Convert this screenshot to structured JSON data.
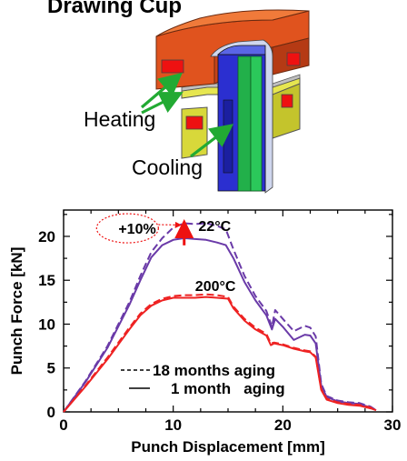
{
  "illustration": {
    "title": "Drawing Cup",
    "heating_label": "Heating",
    "cooling_label": "Cooling",
    "colors": {
      "die_top": "#e0531e",
      "die_lower": "#d8d83a",
      "punch_blue": "#2b2fd0",
      "punch_green": "#22b04a",
      "heater": "#ee1111",
      "arrow": "#22aa33"
    }
  },
  "chart_data": {
    "type": "line",
    "xlabel": "Punch Displacement [mm]",
    "ylabel": "Punch Force [kN]",
    "xlim": [
      0,
      30
    ],
    "ylim": [
      0,
      23
    ],
    "xticks": [
      0,
      10,
      20,
      30
    ],
    "yticks": [
      0,
      5,
      10,
      15,
      20
    ],
    "grid": false,
    "series": [
      {
        "name": "18 months aging",
        "group": "22°C",
        "style": "dashed",
        "color": "#6a3aa8",
        "x": [
          0,
          2,
          4,
          6,
          7,
          8,
          9,
          10,
          11,
          12,
          13,
          14,
          14.8,
          15.5,
          16.5,
          17.5,
          18.5,
          19.0,
          19.3,
          20.0,
          21.0,
          22.0,
          22.5,
          23.0,
          23.5,
          24.0,
          25.0,
          26.0,
          27.0,
          28.0,
          28.5
        ],
        "y": [
          0,
          3.5,
          7.5,
          12.5,
          15.5,
          18.2,
          19.8,
          21.0,
          21.5,
          21.4,
          21.5,
          21.2,
          20.8,
          18.5,
          15.5,
          13.2,
          11.5,
          9.7,
          11.6,
          10.6,
          9.2,
          9.8,
          9.6,
          8.6,
          3.2,
          1.8,
          1.3,
          1.1,
          1.0,
          0.6,
          0.2
        ]
      },
      {
        "name": "1 month aging",
        "group": "22°C",
        "style": "solid",
        "color": "#6a3aa8",
        "x": [
          0,
          2,
          4,
          6,
          7,
          8,
          9,
          10,
          11,
          12,
          13,
          14,
          14.8,
          15.5,
          16.5,
          17.5,
          18.5,
          19.0,
          19.3,
          20.0,
          21.0,
          22.0,
          22.5,
          23.0,
          23.5,
          24.0,
          25.0,
          26.0,
          27.0,
          28.0,
          28.5
        ],
        "y": [
          0,
          3.4,
          7.3,
          12.2,
          15.0,
          17.6,
          19.0,
          19.6,
          19.8,
          19.7,
          19.6,
          19.3,
          19.0,
          17.5,
          14.8,
          12.7,
          11.0,
          9.4,
          10.6,
          9.7,
          8.2,
          8.8,
          8.7,
          7.8,
          3.0,
          1.7,
          1.2,
          1.0,
          0.9,
          0.5,
          0.2
        ]
      },
      {
        "name": "18 months aging",
        "group": "200°C",
        "style": "dashed",
        "color": "#ee2222",
        "x": [
          0,
          2,
          4,
          6,
          7,
          8,
          9,
          10,
          11,
          12,
          13,
          14,
          15.0,
          15.5,
          16.5,
          17.5,
          18.5,
          18.9,
          19.2,
          20.0,
          21.0,
          22.0,
          22.5,
          23.0,
          23.5,
          24.0,
          25.0,
          26.0,
          27.0,
          28.0,
          28.5
        ],
        "y": [
          0,
          3.0,
          6.2,
          9.6,
          11.2,
          12.3,
          12.9,
          13.2,
          13.3,
          13.3,
          13.4,
          13.3,
          13.1,
          12.0,
          10.6,
          9.6,
          8.9,
          7.8,
          7.9,
          7.7,
          7.3,
          7.0,
          6.9,
          6.3,
          2.6,
          1.5,
          1.1,
          0.9,
          0.8,
          0.5,
          0.2
        ]
      },
      {
        "name": "1 month aging",
        "group": "200°C",
        "style": "solid",
        "color": "#ee2222",
        "x": [
          0,
          2,
          4,
          6,
          7,
          8,
          9,
          10,
          11,
          12,
          13,
          14,
          15.0,
          15.5,
          16.5,
          17.5,
          18.5,
          18.9,
          19.2,
          20.0,
          21.0,
          22.0,
          22.5,
          23.0,
          23.5,
          24.0,
          25.0,
          26.0,
          27.0,
          28.0,
          28.5
        ],
        "y": [
          0,
          2.9,
          6.0,
          9.4,
          11.0,
          12.1,
          12.7,
          13.0,
          13.0,
          13.0,
          13.1,
          13.0,
          12.9,
          11.8,
          10.4,
          9.4,
          8.7,
          7.6,
          7.8,
          7.6,
          7.2,
          6.9,
          6.8,
          6.2,
          2.5,
          1.4,
          1.0,
          0.8,
          0.7,
          0.4,
          0.2
        ]
      }
    ],
    "annotations": [
      {
        "text": "22°C",
        "x": 12.3,
        "y": 20.6
      },
      {
        "text": "200°C",
        "x": 12.0,
        "y": 13.8
      },
      {
        "text": "+10%",
        "x": 5.0,
        "y": 20.3,
        "outline": "dashed-ellipse"
      }
    ],
    "increase_arrow": {
      "x": 11.0,
      "y_from": 19.6,
      "y_to": 21.5,
      "color": "#ee1111"
    },
    "legend": {
      "placement": "bottom-center",
      "entries": [
        {
          "style": "dashed",
          "label": "18 months aging"
        },
        {
          "style": "solid",
          "label": "1 month   aging"
        }
      ]
    }
  }
}
